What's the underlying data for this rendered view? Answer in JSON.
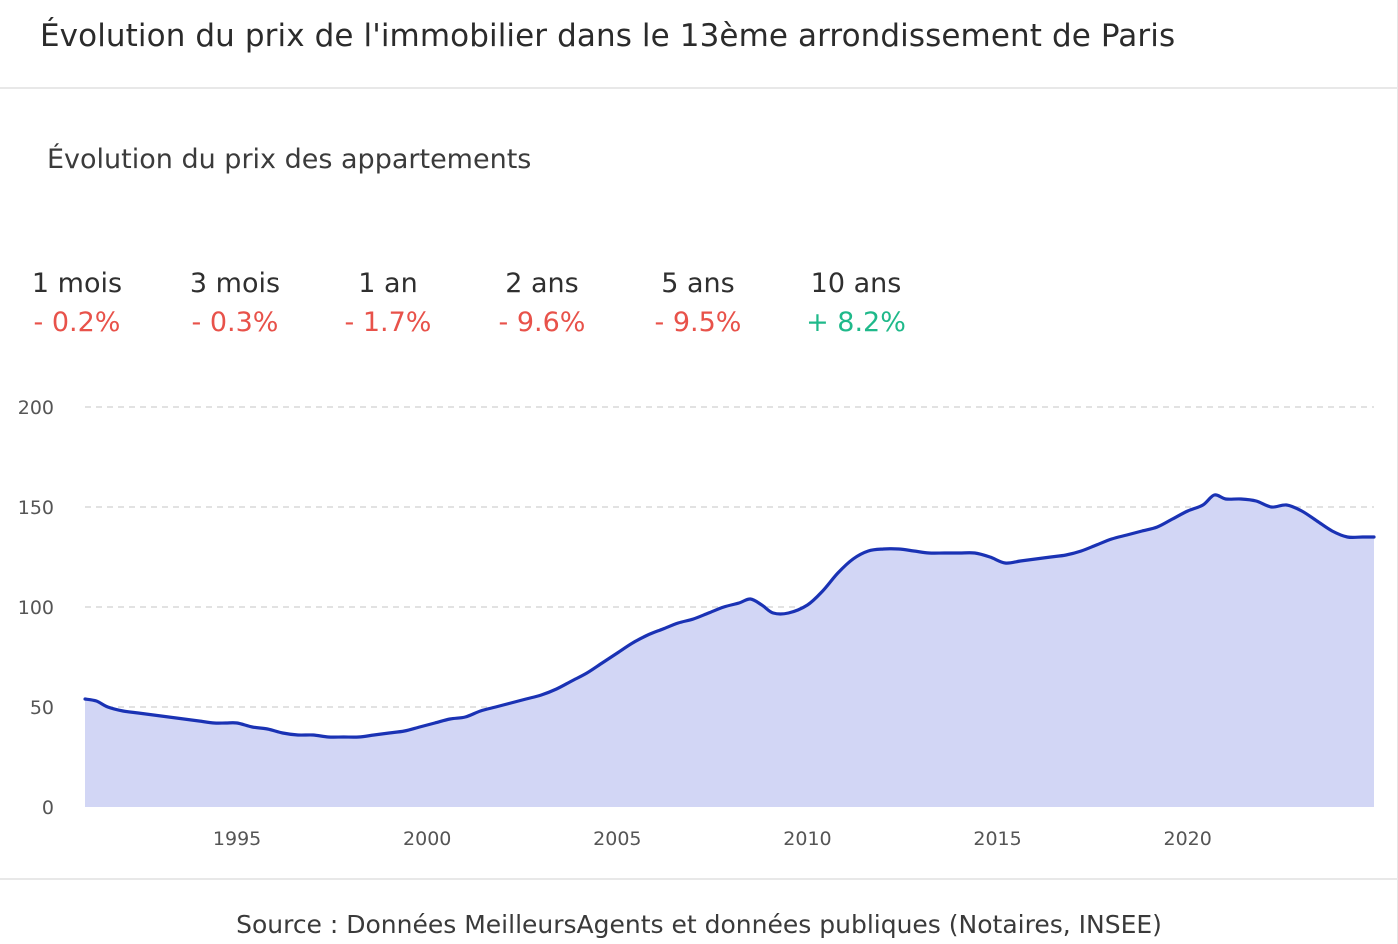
{
  "header": {
    "title": "Évolution du prix de l'immobilier dans le 13ème arrondissement de Paris"
  },
  "subtitle": "Évolution du prix des appartements",
  "stats": [
    {
      "period": "1 mois",
      "change": "- 0.2%",
      "direction": "down"
    },
    {
      "period": "3 mois",
      "change": "- 0.3%",
      "direction": "down"
    },
    {
      "period": "1 an",
      "change": "- 1.7%",
      "direction": "down"
    },
    {
      "period": "2 ans",
      "change": "- 9.6%",
      "direction": "down"
    },
    {
      "period": "5 ans",
      "change": "- 9.5%",
      "direction": "down"
    },
    {
      "period": "10 ans",
      "change": "+ 8.2%",
      "direction": "up"
    }
  ],
  "colors": {
    "down": "#e8524a",
    "up": "#1fb98a",
    "line": "#1a32b4",
    "area": "#d2d6f5",
    "grid": "#d9d9d9",
    "axis_text": "#555555"
  },
  "chart_data": {
    "type": "area",
    "title": "",
    "xlabel": "",
    "ylabel": "",
    "xlim": [
      1991,
      2024.9
    ],
    "ylim": [
      0,
      200
    ],
    "yticks": [
      0,
      50,
      100,
      150,
      200
    ],
    "xticks": [
      1995,
      2000,
      2005,
      2010,
      2015,
      2020
    ],
    "grid": "horizontal dashed",
    "series": [
      {
        "x": [
          1991.0,
          1991.3,
          1991.6,
          1992.0,
          1992.4,
          1992.8,
          1993.2,
          1993.6,
          1994.0,
          1994.4,
          1994.7,
          1995.0,
          1995.4,
          1995.8,
          1996.2,
          1996.6,
          1997.0,
          1997.4,
          1997.8,
          1998.2,
          1998.6,
          1999.0,
          1999.4,
          1999.8,
          2000.2,
          2000.6,
          2001.0,
          2001.4,
          2001.8,
          2002.2,
          2002.6,
          2003.0,
          2003.4,
          2003.8,
          2004.2,
          2004.6,
          2005.0,
          2005.4,
          2005.8,
          2006.2,
          2006.6,
          2007.0,
          2007.4,
          2007.8,
          2008.2,
          2008.5,
          2008.8,
          2009.1,
          2009.5,
          2010.0,
          2010.4,
          2010.8,
          2011.2,
          2011.6,
          2012.0,
          2012.4,
          2012.8,
          2013.2,
          2013.6,
          2014.0,
          2014.4,
          2014.8,
          2015.2,
          2015.6,
          2016.0,
          2016.4,
          2016.8,
          2017.2,
          2017.6,
          2018.0,
          2018.4,
          2018.8,
          2019.2,
          2019.6,
          2020.0,
          2020.4,
          2020.7,
          2021.0,
          2021.4,
          2021.8,
          2022.2,
          2022.6,
          2023.0,
          2023.4,
          2023.8,
          2024.2,
          2024.6,
          2024.9
        ],
        "values": [
          54,
          53,
          50,
          48,
          47,
          46,
          45,
          44,
          43,
          42,
          42,
          42,
          40,
          39,
          37,
          36,
          36,
          35,
          35,
          35,
          36,
          37,
          38,
          40,
          42,
          44,
          45,
          48,
          50,
          52,
          54,
          56,
          59,
          63,
          67,
          72,
          77,
          82,
          86,
          89,
          92,
          94,
          97,
          100,
          102,
          104,
          101,
          97,
          97,
          101,
          108,
          117,
          124,
          128,
          129,
          129,
          128,
          127,
          127,
          127,
          127,
          125,
          122,
          123,
          124,
          125,
          126,
          128,
          131,
          134,
          136,
          138,
          140,
          144,
          148,
          151,
          156,
          154,
          154,
          153,
          150,
          151,
          148,
          143,
          138,
          135,
          135,
          135
        ]
      }
    ]
  },
  "source": "Source : Données MeilleursAgents et données publiques (Notaires, INSEE)"
}
